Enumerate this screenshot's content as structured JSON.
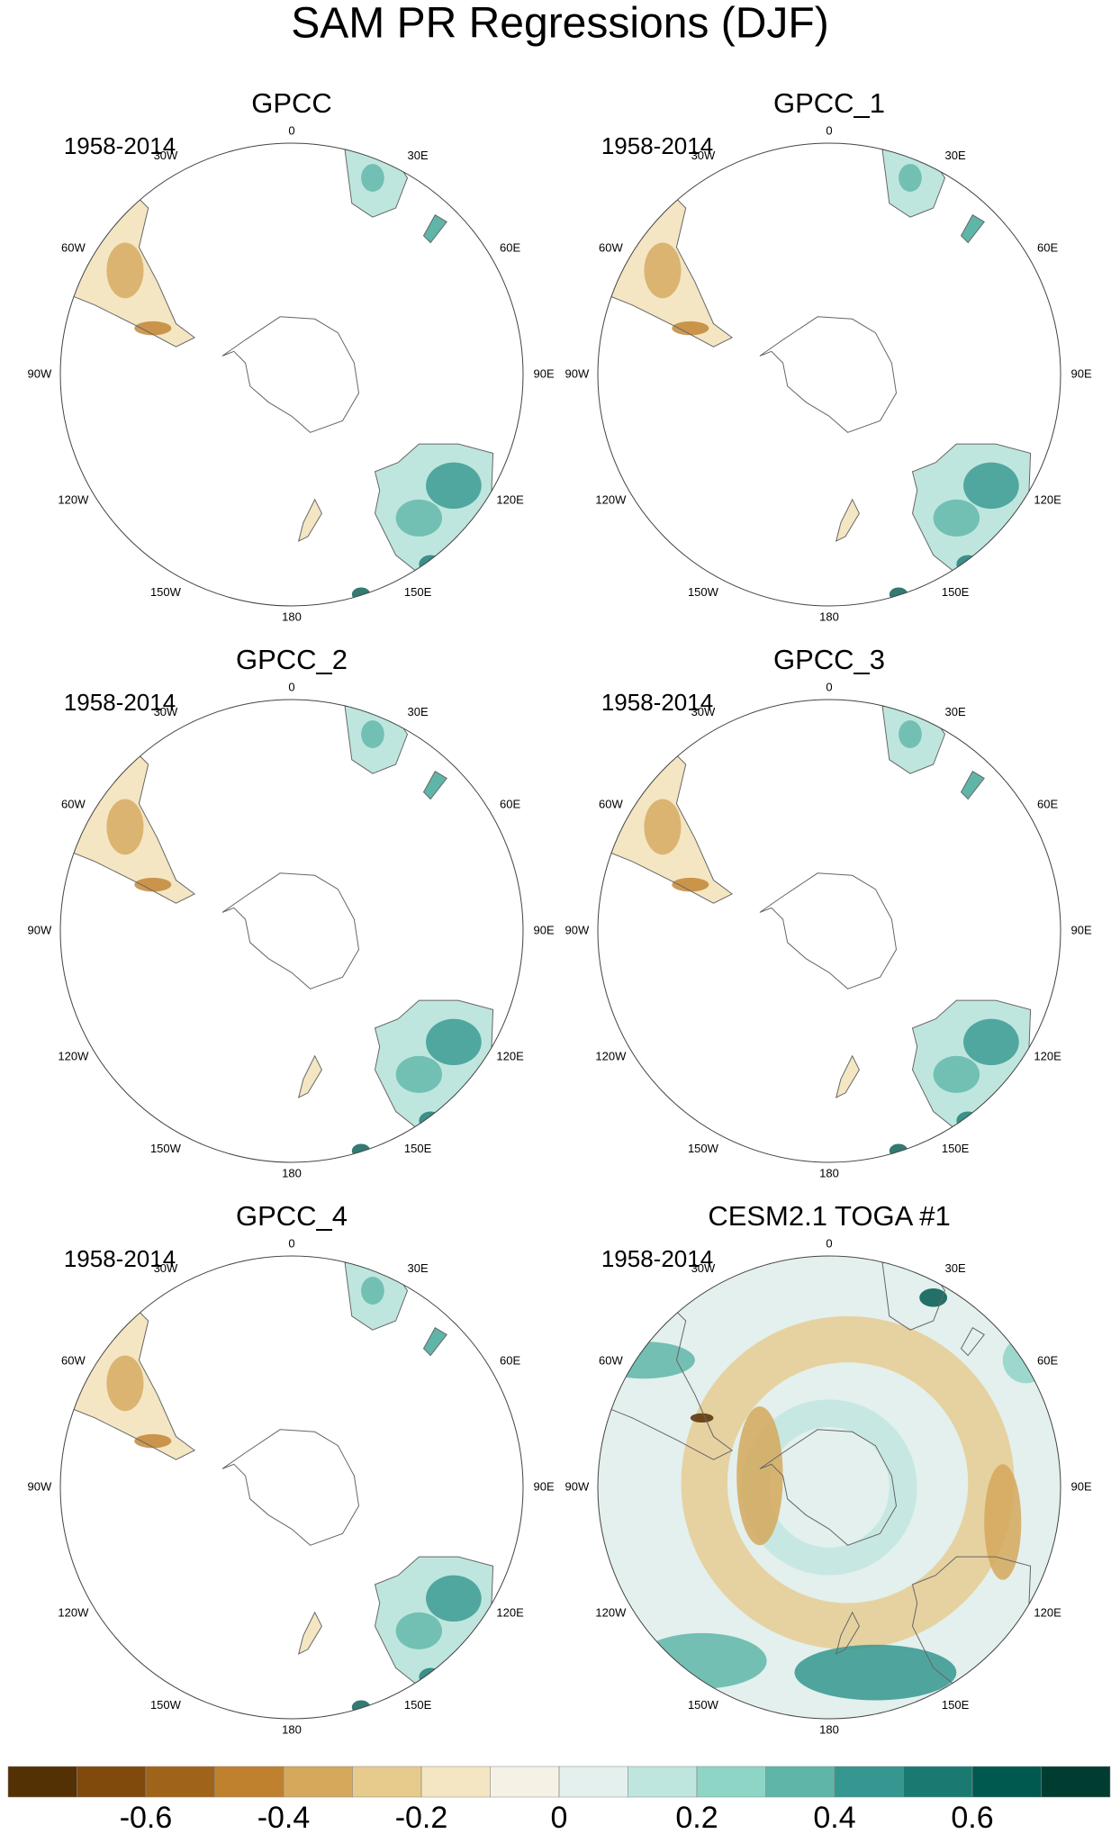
{
  "title": "SAM PR Regressions (DJF)",
  "panels": [
    {
      "title": "GPCC",
      "period": "1958-2014",
      "kind": "obs"
    },
    {
      "title": "GPCC_1",
      "period": "1958-2014",
      "kind": "obs"
    },
    {
      "title": "GPCC_2",
      "period": "1958-2014",
      "kind": "obs"
    },
    {
      "title": "GPCC_3",
      "period": "1958-2014",
      "kind": "obs"
    },
    {
      "title": "GPCC_4",
      "period": "1958-2014",
      "kind": "obs"
    },
    {
      "title": "CESM2.1 TOGA #1",
      "period": "1958-2014",
      "kind": "model"
    }
  ],
  "lon_labels": [
    "0",
    "30E",
    "60E",
    "90E",
    "120E",
    "150E",
    "180",
    "150W",
    "120W",
    "90W",
    "60W",
    "30W"
  ],
  "colorbar": {
    "lim": [
      -0.8,
      0.8
    ],
    "ticks": [
      -0.6,
      -0.4,
      -0.2,
      0,
      0.2,
      0.4,
      0.6
    ],
    "colors": [
      "#543005",
      "#7f4a0c",
      "#a0631a",
      "#bf812d",
      "#d5a85c",
      "#e6cb8d",
      "#f4e6c3",
      "#f5f1e5",
      "#e3f0ee",
      "#bfe6de",
      "#8fd5c6",
      "#5fb6a8",
      "#35978f",
      "#1a7a72",
      "#00594f",
      "#003c30"
    ]
  }
}
